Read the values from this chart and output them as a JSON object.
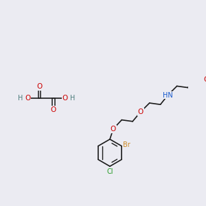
{
  "bg_color": "#ebebf2",
  "bond_color": "#1a1a1a",
  "colors": {
    "O": "#cc0000",
    "N": "#1155cc",
    "Br": "#cc8822",
    "Cl": "#229922",
    "H": "#4a7a7a",
    "C": "#1a1a1a"
  },
  "font_size": 7.5
}
